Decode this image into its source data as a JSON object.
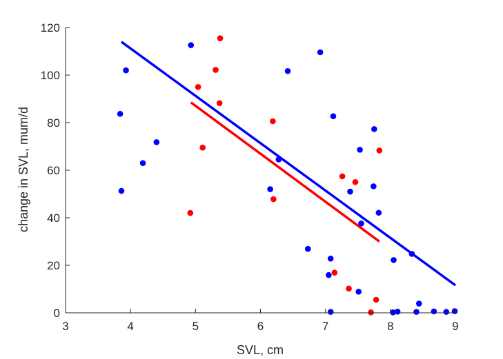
{
  "chart_data": {
    "type": "scatter",
    "title": "",
    "xlabel": "SVL, cm",
    "ylabel": "change in SVL, mum/d",
    "xlim": [
      3,
      9
    ],
    "ylim": [
      0,
      120
    ],
    "xticks": [
      "3",
      "4",
      "5",
      "6",
      "7",
      "8",
      "9"
    ],
    "yticks": [
      "0",
      "20",
      "40",
      "60",
      "80",
      "100",
      "120"
    ],
    "grid": false,
    "legend": "none",
    "series": [
      {
        "color": "#0000ff",
        "points": [
          [
            3.84,
            83.7
          ],
          [
            3.86,
            51.3
          ],
          [
            3.93,
            102.0
          ],
          [
            4.19,
            63.0
          ],
          [
            4.4,
            71.8
          ],
          [
            4.93,
            112.6
          ],
          [
            6.15,
            52.0
          ],
          [
            6.28,
            64.5
          ],
          [
            6.42,
            101.7
          ],
          [
            6.73,
            26.9
          ],
          [
            6.92,
            109.6
          ],
          [
            7.05,
            15.9
          ],
          [
            7.08,
            22.8
          ],
          [
            7.12,
            82.7
          ],
          [
            7.08,
            0.4
          ],
          [
            7.38,
            51.0
          ],
          [
            7.51,
            8.9
          ],
          [
            7.53,
            68.6
          ],
          [
            7.55,
            37.6
          ],
          [
            7.74,
            53.2
          ],
          [
            7.75,
            77.3
          ],
          [
            7.82,
            42.1
          ],
          [
            8.04,
            0.2
          ],
          [
            8.05,
            22.2
          ],
          [
            8.11,
            0.5
          ],
          [
            8.33,
            24.8
          ],
          [
            8.4,
            0.4
          ],
          [
            8.44,
            3.9
          ],
          [
            8.67,
            0.6
          ],
          [
            8.86,
            0.4
          ],
          [
            8.99,
            0.7
          ]
        ],
        "fit": [
          [
            3.86,
            114.0
          ],
          [
            9.0,
            11.6
          ]
        ]
      },
      {
        "color": "#ff0000",
        "points": [
          [
            4.92,
            42.0
          ],
          [
            5.04,
            95.0
          ],
          [
            5.11,
            69.5
          ],
          [
            5.31,
            102.2
          ],
          [
            5.37,
            88.2
          ],
          [
            5.38,
            115.5
          ],
          [
            6.19,
            80.6
          ],
          [
            6.2,
            47.8
          ],
          [
            7.14,
            16.9
          ],
          [
            7.26,
            57.4
          ],
          [
            7.36,
            10.2
          ],
          [
            7.46,
            55.0
          ],
          [
            7.7,
            0.2
          ],
          [
            7.78,
            5.5
          ],
          [
            7.83,
            68.3
          ]
        ],
        "fit": [
          [
            4.93,
            88.5
          ],
          [
            7.83,
            30.0
          ]
        ]
      }
    ]
  }
}
